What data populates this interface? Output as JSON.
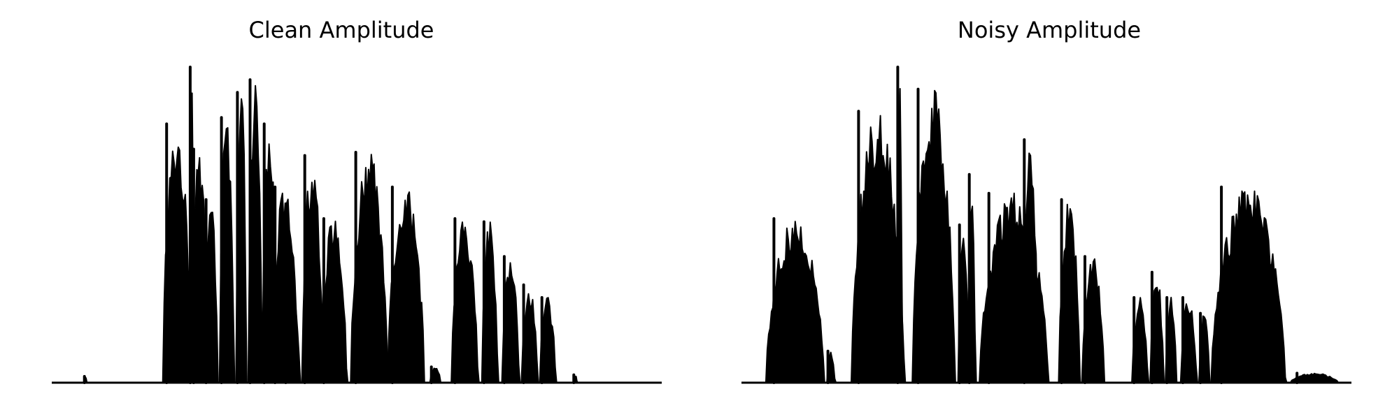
{
  "chart_data": [
    {
      "type": "area",
      "title": "Clean Amplitude",
      "xlabel": "",
      "ylabel": "",
      "axes_visible": false,
      "grid": false,
      "ylim": [
        0,
        1
      ],
      "color": "#000000",
      "bursts": [
        {
          "start": 0.053,
          "end": 0.058,
          "peak": 0.02
        },
        {
          "start": 0.182,
          "end": 0.235,
          "peak": 0.82
        },
        {
          "start": 0.226,
          "end": 0.234,
          "peak": 1.0
        },
        {
          "start": 0.229,
          "end": 0.26,
          "peak": 0.74
        },
        {
          "start": 0.25,
          "end": 0.275,
          "peak": 0.58
        },
        {
          "start": 0.275,
          "end": 0.302,
          "peak": 0.84
        },
        {
          "start": 0.302,
          "end": 0.322,
          "peak": 0.92
        },
        {
          "start": 0.322,
          "end": 0.348,
          "peak": 0.96
        },
        {
          "start": 0.345,
          "end": 0.372,
          "peak": 0.82
        },
        {
          "start": 0.36,
          "end": 0.41,
          "peak": 0.62
        },
        {
          "start": 0.38,
          "end": 0.41,
          "peak": 0.38
        },
        {
          "start": 0.41,
          "end": 0.45,
          "peak": 0.72
        },
        {
          "start": 0.44,
          "end": 0.49,
          "peak": 0.52
        },
        {
          "start": 0.49,
          "end": 0.56,
          "peak": 0.73
        },
        {
          "start": 0.55,
          "end": 0.62,
          "peak": 0.62
        },
        {
          "start": 0.62,
          "end": 0.64,
          "peak": 0.05
        },
        {
          "start": 0.655,
          "end": 0.705,
          "peak": 0.52
        },
        {
          "start": 0.705,
          "end": 0.735,
          "peak": 0.51
        },
        {
          "start": 0.738,
          "end": 0.77,
          "peak": 0.4
        },
        {
          "start": 0.77,
          "end": 0.8,
          "peak": 0.31
        },
        {
          "start": 0.8,
          "end": 0.83,
          "peak": 0.27
        },
        {
          "start": 0.855,
          "end": 0.862,
          "peak": 0.025
        }
      ]
    },
    {
      "type": "area",
      "title": "Noisy Amplitude",
      "xlabel": "",
      "ylabel": "",
      "axes_visible": false,
      "grid": false,
      "ylim": [
        0,
        1
      ],
      "color": "#000000",
      "bursts": [
        {
          "start": 0.04,
          "end": 0.15,
          "peak": 0.52
        },
        {
          "start": 0.14,
          "end": 0.155,
          "peak": 0.1
        },
        {
          "start": 0.18,
          "end": 0.28,
          "peak": 0.86
        },
        {
          "start": 0.255,
          "end": 0.265,
          "peak": 1.0
        },
        {
          "start": 0.28,
          "end": 0.36,
          "peak": 0.93
        },
        {
          "start": 0.355,
          "end": 0.375,
          "peak": 0.5
        },
        {
          "start": 0.372,
          "end": 0.385,
          "peak": 0.66
        },
        {
          "start": 0.39,
          "end": 0.52,
          "peak": 0.6
        },
        {
          "start": 0.46,
          "end": 0.49,
          "peak": 0.77
        },
        {
          "start": 0.52,
          "end": 0.56,
          "peak": 0.58
        },
        {
          "start": 0.558,
          "end": 0.6,
          "peak": 0.4
        },
        {
          "start": 0.64,
          "end": 0.67,
          "peak": 0.27
        },
        {
          "start": 0.67,
          "end": 0.695,
          "peak": 0.35
        },
        {
          "start": 0.695,
          "end": 0.716,
          "peak": 0.27
        },
        {
          "start": 0.72,
          "end": 0.75,
          "peak": 0.27
        },
        {
          "start": 0.75,
          "end": 0.77,
          "peak": 0.22
        },
        {
          "start": 0.77,
          "end": 0.91,
          "peak": 0.62
        },
        {
          "start": 0.9,
          "end": 0.99,
          "peak": 0.03
        }
      ]
    }
  ]
}
